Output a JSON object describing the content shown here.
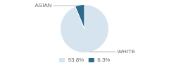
{
  "chart_data": {
    "type": "pie",
    "categories": [
      "WHITE",
      "ASIAN"
    ],
    "values": [
      93.8,
      6.3
    ],
    "value_labels": [
      "93.8%",
      "6.3%"
    ],
    "colors": [
      "#d6e4ef",
      "#2d6a8a"
    ],
    "legend": "bottom"
  }
}
